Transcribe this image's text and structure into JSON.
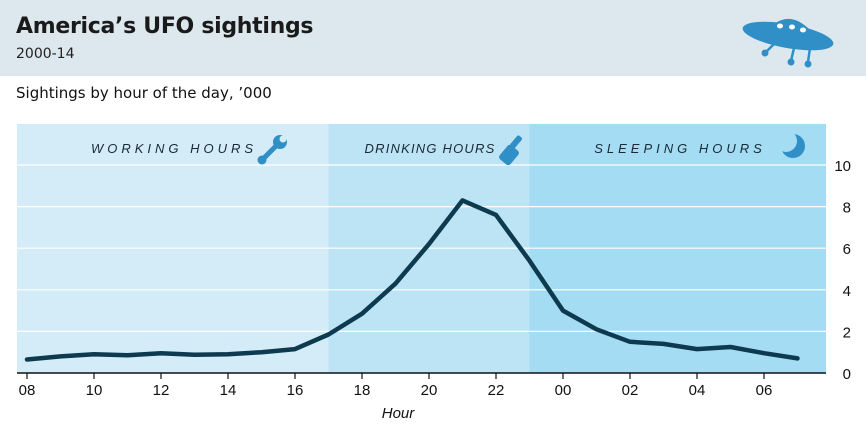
{
  "header": {
    "title": "America’s UFO sightings",
    "subtitle": "2000-14",
    "chart_title": "Sightings by hour of the day, ’000"
  },
  "colors": {
    "band_working": "#d3ecf8",
    "band_drinking": "#bde4f5",
    "band_sleeping": "#a3dcf3",
    "line": "#0d3a4f",
    "icon": "#2f8fc6",
    "background": "#dde7ee"
  },
  "icons": [
    "ufo-icon",
    "wrench-icon",
    "bottle-icon",
    "moon-icon"
  ],
  "chart_data": {
    "type": "line",
    "title": "Sightings by hour of the day, ’000",
    "xlabel": "Hour",
    "ylabel": "",
    "ylim": [
      0,
      10
    ],
    "yticks": [
      "0",
      "2",
      "4",
      "6",
      "8",
      "10"
    ],
    "grid": true,
    "x": [
      "08",
      "09",
      "10",
      "11",
      "12",
      "13",
      "14",
      "15",
      "16",
      "17",
      "18",
      "19",
      "20",
      "21",
      "22",
      "23",
      "00",
      "01",
      "02",
      "03",
      "04",
      "05",
      "06",
      "07"
    ],
    "xtick_labels": [
      "08",
      "10",
      "12",
      "14",
      "16",
      "18",
      "20",
      "22",
      "00",
      "02",
      "04",
      "06"
    ],
    "values": [
      0.65,
      0.8,
      0.9,
      0.85,
      0.95,
      0.88,
      0.9,
      1.0,
      1.15,
      1.85,
      2.85,
      4.3,
      6.2,
      8.3,
      7.6,
      5.4,
      3.0,
      2.1,
      1.5,
      1.4,
      1.15,
      1.25,
      0.95,
      0.7
    ],
    "bands": [
      {
        "label": "WORKING HOURS",
        "from": "08",
        "to": "17"
      },
      {
        "label": "DRINKING HOURS",
        "from": "17",
        "to": "23"
      },
      {
        "label": "SLEEPING HOURS",
        "from": "23",
        "to": "07"
      }
    ]
  }
}
